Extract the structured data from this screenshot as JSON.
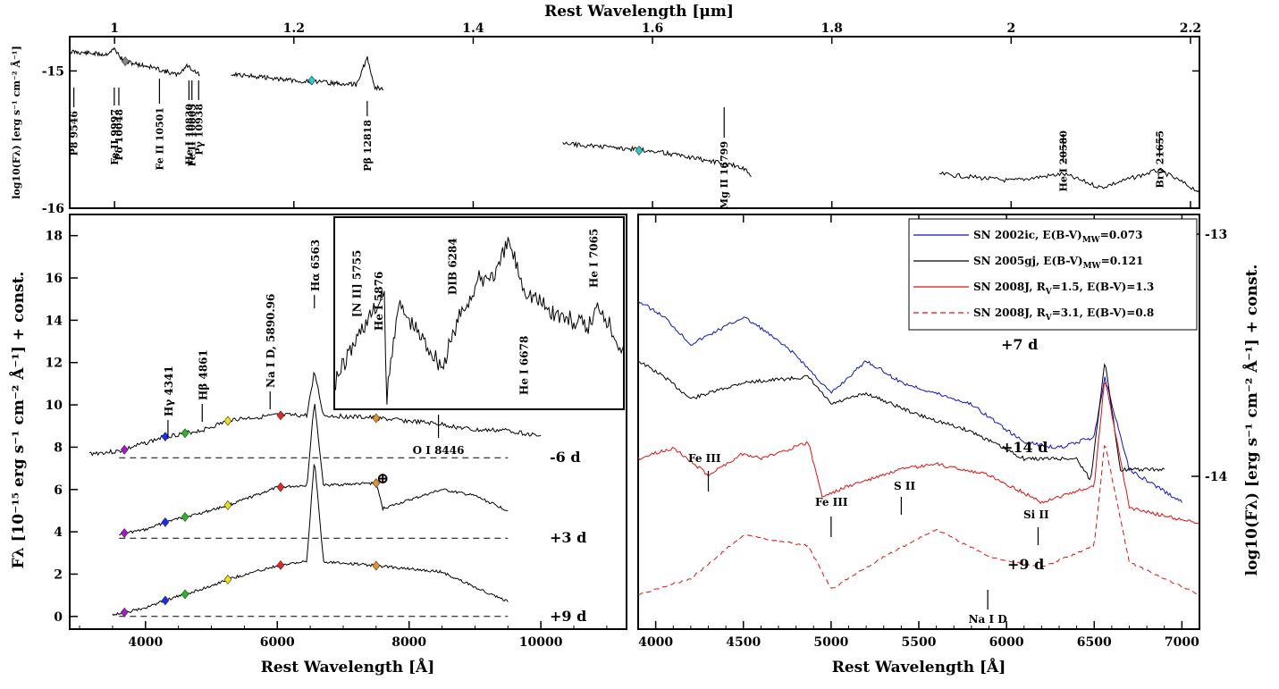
{
  "chart_data": [
    {
      "id": "nir",
      "type": "line",
      "xlabel": "Rest Wavelength [μm]",
      "ylabel": "log10(Fλ) [erg s⁻¹ cm⁻² Å⁻¹]",
      "xlim": [
        0.95,
        2.21
      ],
      "ylim": [
        -16,
        -14.75
      ],
      "xticks": [
        "1",
        "1.2",
        "1.4",
        "1.6",
        "1.8",
        "2",
        "2.2"
      ],
      "yticks": [
        "-15",
        "-16"
      ],
      "lines": [
        "P8 9546",
        "Fe II 9997",
        "Pδ 10048",
        "Fe II 10501",
        "He I 10830",
        "Fe II 10863",
        "Pγ 10938",
        "Pβ 12818",
        "Mg II 16799",
        "He I 20580",
        "Brγ 21655"
      ],
      "segments": [
        {
          "x": [
            0.951,
            0.99,
            1.0,
            1.01,
            1.04,
            1.07,
            1.081,
            1.095
          ],
          "y": [
            -14.86,
            -14.88,
            -14.84,
            -14.93,
            -14.97,
            -15.03,
            -14.96,
            -15.03
          ]
        },
        {
          "x": [
            1.13,
            1.2,
            1.27,
            1.282,
            1.29,
            1.3
          ],
          "y": [
            -15.02,
            -15.07,
            -15.1,
            -14.9,
            -15.12,
            -15.13
          ]
        },
        {
          "x": [
            1.5,
            1.6,
            1.7,
            1.71
          ],
          "y": [
            -15.53,
            -15.58,
            -15.7,
            -15.76
          ]
        },
        {
          "x": [
            1.92,
            2.0,
            2.058,
            2.1,
            2.165,
            2.21
          ],
          "y": [
            -15.75,
            -15.8,
            -15.75,
            -15.85,
            -15.72,
            -15.88
          ]
        }
      ],
      "markers": [
        {
          "x": 1.012,
          "y": -14.93,
          "color": "#888888"
        },
        {
          "x": 1.22,
          "y": -15.07,
          "color": "#22cfcf"
        },
        {
          "x": 1.585,
          "y": -15.58,
          "color": "#22cfcf"
        }
      ]
    },
    {
      "id": "optical",
      "type": "line",
      "xlabel": "Rest Wavelength [Å]",
      "ylabel": "Fλ [10⁻¹⁵ erg s⁻¹ cm⁻² Å⁻¹] + const.",
      "xlim": [
        2850,
        11300
      ],
      "ylim": [
        -0.6,
        19
      ],
      "xticks": [
        4000,
        6000,
        8000,
        10000
      ],
      "yticks": [
        0,
        2,
        4,
        6,
        8,
        10,
        12,
        14,
        16,
        18
      ],
      "epochs": [
        "-6 d",
        "+3 d",
        "+9 d"
      ],
      "series": [
        {
          "name": "-6 d",
          "offset": 7.5,
          "x": [
            3150,
            3600,
            4000,
            4300,
            4860,
            5300,
            6000,
            6450,
            6563,
            6700,
            7400,
            8446,
            9000,
            9500,
            10000
          ],
          "y": [
            0.2,
            0.3,
            0.7,
            1.0,
            1.3,
            1.8,
            2.0,
            2.0,
            4.1,
            2.0,
            1.9,
            1.6,
            1.3,
            1.3,
            1.0
          ]
        },
        {
          "name": "+3 d",
          "offset": 3.7,
          "x": [
            3600,
            4000,
            4340,
            4860,
            5300,
            6000,
            6450,
            6563,
            6700,
            7500,
            7600,
            8500,
            9000,
            9500
          ],
          "y": [
            0.2,
            0.4,
            0.8,
            1.2,
            1.6,
            2.4,
            2.5,
            6.5,
            2.5,
            2.6,
            1.4,
            2.3,
            2.0,
            1.3
          ]
        },
        {
          "name": "+9 d",
          "offset": 0,
          "x": [
            3500,
            3700,
            4000,
            4340,
            4860,
            5300,
            6000,
            6450,
            6563,
            6700,
            7500,
            8500,
            9200,
            9500
          ],
          "y": [
            0.1,
            0.2,
            0.4,
            0.8,
            1.3,
            1.8,
            2.4,
            2.6,
            7.5,
            2.6,
            2.4,
            2.1,
            1.1,
            0.7
          ]
        }
      ],
      "lines": [
        "Hγ 4341",
        "Hβ 4861",
        "Na I D, 5890.96",
        "Hα 6563",
        "O I 8446",
        "⊕"
      ],
      "inset": {
        "xlim": [
          5600,
          7200
        ],
        "lines": [
          "[N II] 5755",
          "He I 5876",
          "DIB 6284",
          "He I 6678",
          "He I 7065"
        ],
        "x": [
          5600,
          5755,
          5876,
          5890,
          5950,
          6200,
          6284,
          6400,
          6500,
          6563,
          6650,
          6800,
          7000,
          7065,
          7200
        ],
        "y": [
          0.1,
          0.45,
          0.65,
          0.0,
          0.6,
          0.2,
          0.5,
          0.75,
          0.8,
          1.0,
          0.7,
          0.55,
          0.45,
          0.6,
          0.3
        ]
      }
    },
    {
      "id": "comparison",
      "type": "line",
      "xlabel": "Rest Wavelength [Å]",
      "ylabel": "log10(Fλ) [erg s⁻¹ cm⁻² Å⁻¹] + const.",
      "xlim": [
        3900,
        7100
      ],
      "ylim": [
        -14.8,
        -12.9
      ],
      "xticks": [
        4000,
        4500,
        5000,
        5500,
        6000,
        6500,
        7000
      ],
      "yticks": [
        "-13",
        "-14"
      ],
      "legend_position": "top-right",
      "epochs": [
        {
          "text": "+7 d",
          "color": "#0a14cc"
        },
        {
          "text": "+14 d",
          "color": "#000000"
        },
        {
          "text": "+9 d",
          "color": "#e01010"
        }
      ],
      "lines": [
        "Fe III",
        "Fe III",
        "S II",
        "Si II",
        "Na I D"
      ],
      "series": [
        {
          "name": "SN 2002ic, E(B-V)",
          "name_sub": "MW",
          "name_rest": "=0.073",
          "color": "#0a14cc",
          "dash": false,
          "x": [
            3900,
            4050,
            4200,
            4500,
            4600,
            4800,
            5000,
            5200,
            5400,
            5800,
            6100,
            6300,
            6500,
            6560,
            6700,
            7000
          ],
          "y": [
            2.9,
            2.75,
            2.5,
            2.75,
            2.65,
            2.4,
            2.05,
            2.35,
            2.15,
            1.95,
            1.6,
            1.55,
            1.65,
            2.2,
            1.35,
            1.05
          ]
        },
        {
          "name": "SN 2005gj, E(B-V)",
          "name_sub": "MW",
          "name_rest": "=0.121",
          "color": "#000000",
          "dash": false,
          "x": [
            3900,
            4050,
            4200,
            4500,
            4870,
            5000,
            5200,
            5500,
            5800,
            6100,
            6400,
            6480,
            6560,
            6650,
            6900
          ],
          "y": [
            2.35,
            2.2,
            2.0,
            2.15,
            2.2,
            1.95,
            2.05,
            1.85,
            1.7,
            1.45,
            1.45,
            1.25,
            2.35,
            1.35,
            1.35
          ]
        },
        {
          "name": "SN 2008J, R",
          "name_sub": "V",
          "name_rest": "=1.5, E(B-V)=1.3",
          "color": "#e01010",
          "dash": false,
          "x": [
            3900,
            4100,
            4300,
            4500,
            4600,
            4870,
            4950,
            5100,
            5400,
            5600,
            5900,
            6200,
            6500,
            6560,
            6700,
            7100
          ],
          "y": [
            1.45,
            1.55,
            1.3,
            1.5,
            1.45,
            1.6,
            1.1,
            1.2,
            1.35,
            1.4,
            1.3,
            1.05,
            1.2,
            2.2,
            1.0,
            0.85
          ]
        },
        {
          "name": "SN 2008J, R",
          "name_sub": "V",
          "name_rest": "=3.1, E(B-V)=0.8",
          "color": "#e01010",
          "dash": true,
          "x": [
            3900,
            4200,
            4500,
            4870,
            5000,
            5300,
            5600,
            5900,
            6200,
            6500,
            6560,
            6700,
            7100
          ],
          "y": [
            0.2,
            0.35,
            0.75,
            0.65,
            0.25,
            0.55,
            0.8,
            0.55,
            0.45,
            0.65,
            1.6,
            0.5,
            0.2
          ]
        }
      ]
    }
  ]
}
